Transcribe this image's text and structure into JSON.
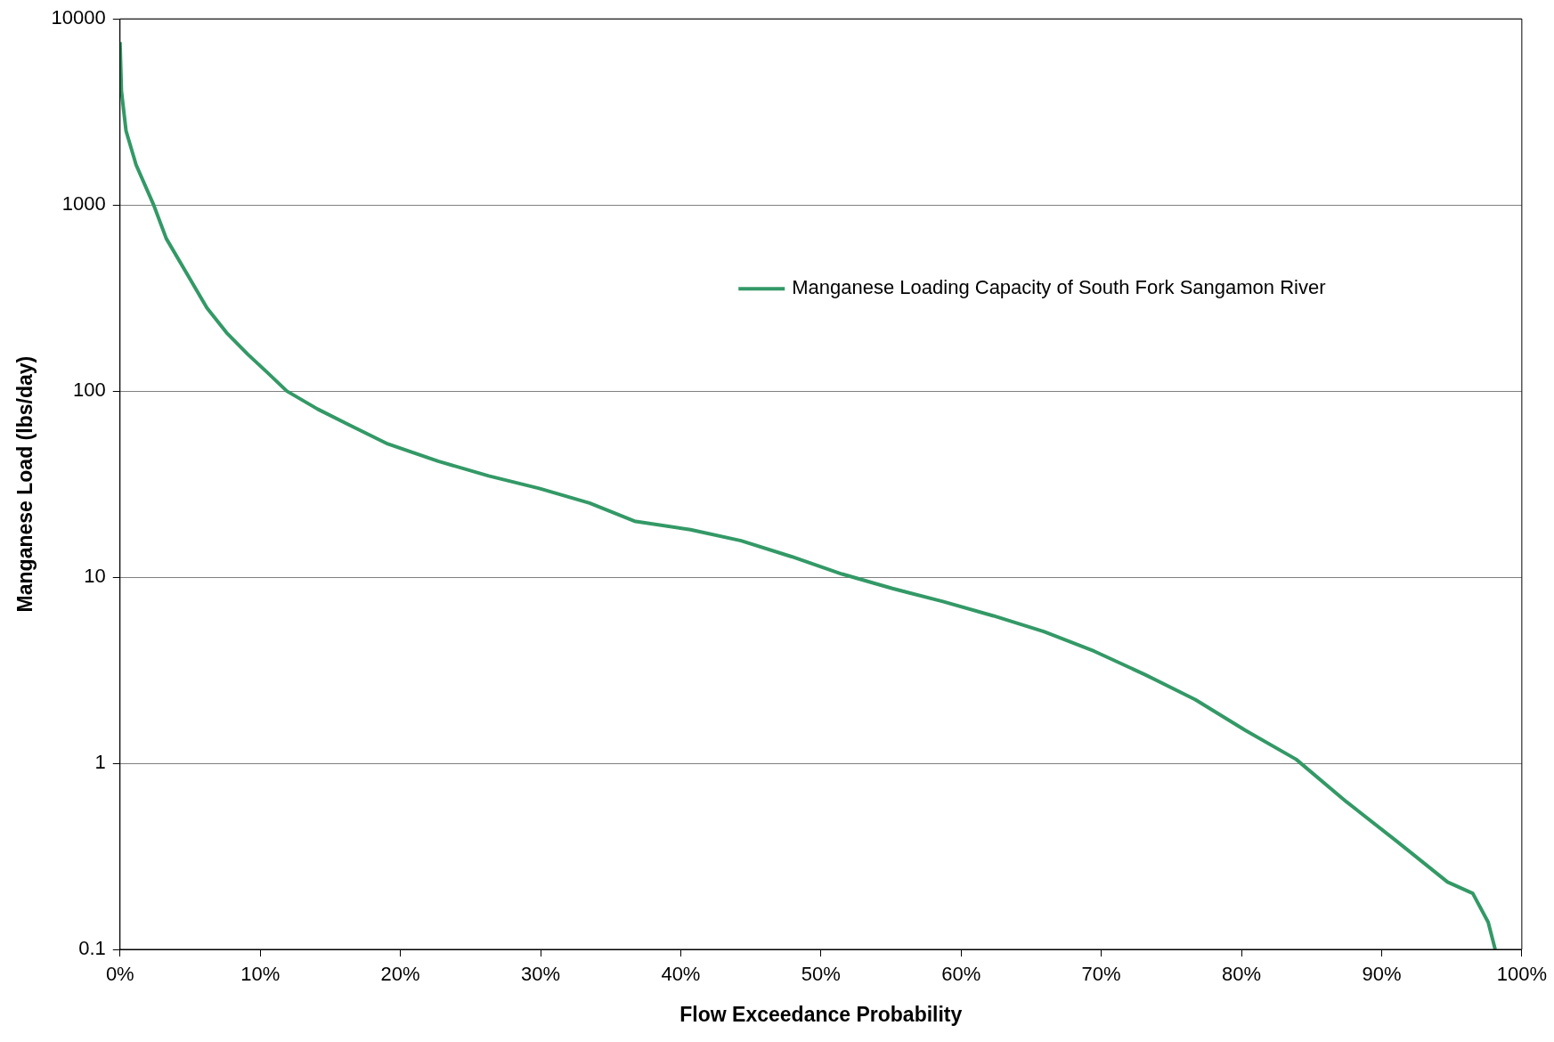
{
  "chart_data": {
    "type": "line",
    "xlabel": "Flow Exceedance Probability",
    "ylabel": "Manganese Load (lbs/day)",
    "x": [
      0,
      0.1,
      0.43,
      1.15,
      2.4,
      3.3,
      4.75,
      6.2,
      7.6,
      9.1,
      10.5,
      11.9,
      14.1,
      16.3,
      19.1,
      22.7,
      26.3,
      29.9,
      33.5,
      36.7,
      40.7,
      44.3,
      47.9,
      51.5,
      55.1,
      58.7,
      62.3,
      65.9,
      69.5,
      73.1,
      76.7,
      80.3,
      83.9,
      87.5,
      91.1,
      94.7,
      96.5,
      97.6,
      98.1
    ],
    "series": [
      {
        "name": "Manganese Loading Capacity of South Fork Sangamon River",
        "color": "#339966",
        "values": [
          7500,
          4100,
          2500,
          1640,
          1000,
          660,
          430,
          280,
          206,
          158,
          126,
          100,
          80,
          66,
          52,
          42,
          35,
          30,
          25,
          20,
          18,
          15.7,
          12.9,
          10.4,
          8.7,
          7.4,
          6.2,
          5.1,
          4.0,
          3.0,
          2.2,
          1.5,
          1.05,
          0.62,
          0.38,
          0.23,
          0.2,
          0.14,
          0.1
        ]
      }
    ],
    "xlim": [
      0,
      100
    ],
    "xticks": [
      {
        "value": 0,
        "label": "0%"
      },
      {
        "value": 10,
        "label": "10%"
      },
      {
        "value": 20,
        "label": "20%"
      },
      {
        "value": 30,
        "label": "30%"
      },
      {
        "value": 40,
        "label": "40%"
      },
      {
        "value": 50,
        "label": "50%"
      },
      {
        "value": 60,
        "label": "60%"
      },
      {
        "value": 70,
        "label": "70%"
      },
      {
        "value": 80,
        "label": "80%"
      },
      {
        "value": 90,
        "label": "90%"
      },
      {
        "value": 100,
        "label": "100%"
      }
    ],
    "ylim": [
      0.1,
      10000
    ],
    "yticks": [
      0.1,
      1,
      10,
      100,
      1000,
      10000
    ],
    "log": "y",
    "grid": "y",
    "legend": "top right",
    "marker": "none",
    "line_style": "solid"
  }
}
